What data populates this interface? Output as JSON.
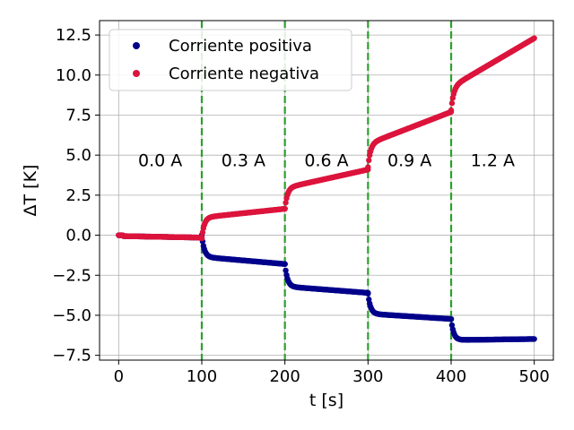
{
  "chart_data": {
    "type": "scatter",
    "title": "",
    "xlabel": "t [s]",
    "ylabel": "ΔT [K]",
    "xlim": [
      -23,
      523
    ],
    "ylim": [
      -7.8,
      13.4
    ],
    "xticks": [
      0,
      100,
      200,
      300,
      400,
      500
    ],
    "xtick_labels": [
      "0",
      "100",
      "200",
      "300",
      "400",
      "500"
    ],
    "yticks": [
      -7.5,
      -5.0,
      -2.5,
      0.0,
      2.5,
      5.0,
      7.5,
      10.0,
      12.5
    ],
    "ytick_labels": [
      "−7.5",
      "−5.0",
      "−2.5",
      "0.0",
      "2.5",
      "5.0",
      "7.5",
      "10.0",
      "12.5"
    ],
    "grid": true,
    "legend_position": "top-left",
    "vlines": {
      "x": [
        100,
        200,
        300,
        400
      ],
      "style": "dashed",
      "color": "#2ca02c"
    },
    "region_labels": [
      {
        "text": "0.0 A",
        "x": 50,
        "y": 4.7
      },
      {
        "text": "0.3 A",
        "x": 150,
        "y": 4.7
      },
      {
        "text": "0.6 A",
        "x": 250,
        "y": 4.7
      },
      {
        "text": "0.9 A",
        "x": 350,
        "y": 4.7
      },
      {
        "text": "1.2 A",
        "x": 450,
        "y": 4.7
      }
    ],
    "series": [
      {
        "name": "Corriente positiva",
        "color": "#00008b",
        "segments": [
          {
            "t0": 0,
            "t1": 100,
            "baseline": 0.0,
            "jump": 0.0,
            "tau": 3,
            "slope": -0.002
          },
          {
            "t0": 100,
            "t1": 200,
            "baseline": 0.0,
            "jump": -1.35,
            "tau": 3,
            "slope": -0.0045
          },
          {
            "t0": 200,
            "t1": 300,
            "baseline": -1.8,
            "jump": -1.4,
            "tau": 3,
            "slope": -0.004
          },
          {
            "t0": 300,
            "t1": 400,
            "baseline": -3.65,
            "jump": -1.25,
            "tau": 3,
            "slope": -0.0033
          },
          {
            "t0": 400,
            "t1": 500,
            "baseline": -5.25,
            "jump": -1.3,
            "tau": 3,
            "slope": 0.0007
          }
        ]
      },
      {
        "name": "Corriente negativa",
        "color": "#dc143c",
        "segments": [
          {
            "t0": 0,
            "t1": 100,
            "baseline": 0.0,
            "jump": 0.0,
            "tau": 3,
            "slope": -0.002
          },
          {
            "t0": 100,
            "t1": 200,
            "baseline": -0.2,
            "jump": 1.3,
            "tau": 3,
            "slope": 0.0055
          },
          {
            "t0": 200,
            "t1": 300,
            "baseline": 1.65,
            "jump": 1.3,
            "tau": 3,
            "slope": 0.0115
          },
          {
            "t0": 300,
            "t1": 400,
            "baseline": 4.25,
            "jump": 1.45,
            "tau": 3,
            "slope": 0.02
          },
          {
            "t0": 400,
            "t1": 500,
            "baseline": 7.8,
            "jump": 1.45,
            "tau": 3,
            "slope": 0.0305
          }
        ]
      }
    ]
  }
}
